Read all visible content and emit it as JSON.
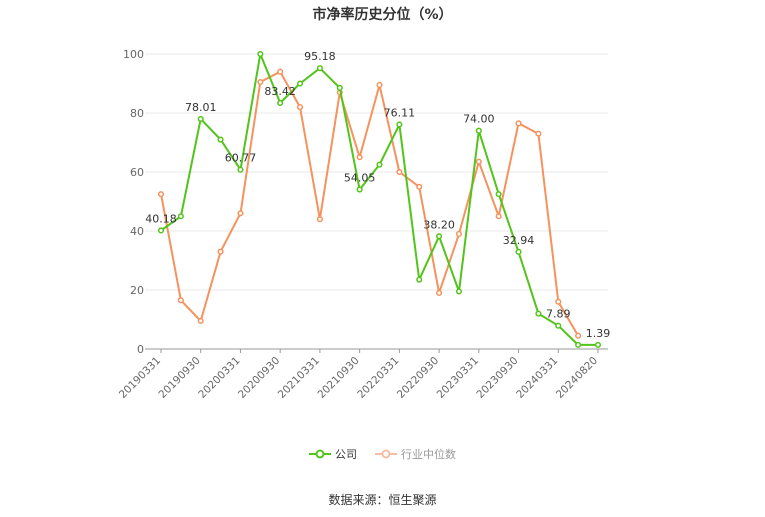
{
  "chart_data": {
    "type": "line",
    "title": "市净率历史分位（%）",
    "ylim": [
      0,
      100
    ],
    "yticks": [
      0,
      20,
      40,
      60,
      80,
      100
    ],
    "grid": true,
    "legend_position": "bottom",
    "x": [
      "20190331",
      "20190630",
      "20190930",
      "20191231",
      "20200331",
      "20200630",
      "20200930",
      "20201231",
      "20210331",
      "20210630",
      "20210930",
      "20211231",
      "20220331",
      "20220630",
      "20220930",
      "20221231",
      "20230331",
      "20230630",
      "20230930",
      "20231231",
      "20240331",
      "20240630",
      "20240820"
    ],
    "xtick_labels": [
      "20190331",
      "20190930",
      "20200331",
      "20200930",
      "20210331",
      "20210930",
      "20220331",
      "20220930",
      "20230331",
      "20230930",
      "20240331",
      "20240820"
    ],
    "series": [
      {
        "name": "公司",
        "color": "#52c41a",
        "values": [
          40.18,
          45.0,
          78.01,
          71.0,
          60.77,
          100.0,
          83.42,
          90.0,
          95.18,
          88.5,
          54.05,
          62.5,
          76.11,
          23.5,
          38.2,
          19.5,
          74.0,
          52.5,
          32.94,
          12.0,
          7.89,
          1.39,
          1.39
        ],
        "labels": [
          "40.18",
          null,
          "78.01",
          null,
          "60.77",
          null,
          "83.42",
          null,
          "95.18",
          null,
          "54.05",
          null,
          "76.11",
          null,
          "38.20",
          null,
          "74.00",
          null,
          "32.94",
          null,
          "7.89",
          null,
          "1.39"
        ]
      },
      {
        "name": "行业中位数",
        "color": "#f5925e",
        "values": [
          52.5,
          16.5,
          9.5,
          33.0,
          46.0,
          90.5,
          94.0,
          82.0,
          44.0,
          87.0,
          65.0,
          89.5,
          60.0,
          55.0,
          19.0,
          39.0,
          63.5,
          45.0,
          76.5,
          73.0,
          16.0,
          4.5,
          null
        ]
      }
    ]
  },
  "source": "数据来源：恒生聚源"
}
